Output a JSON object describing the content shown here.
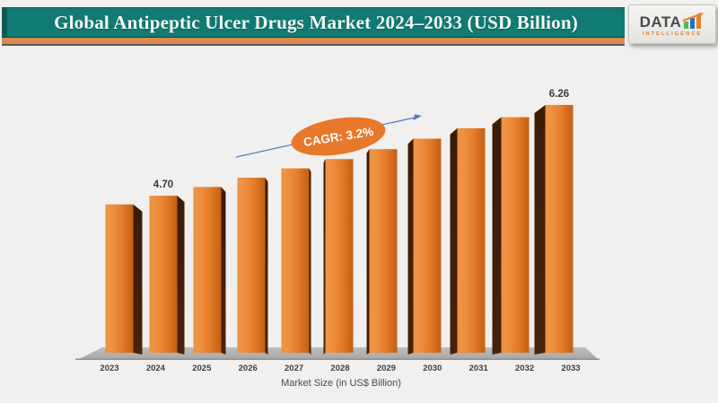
{
  "header": {
    "title": "Global Antipeptic Ulcer Drugs Market 2024–2033 (USD Billion)",
    "colors": {
      "teal": "#0F7B72",
      "teal_dark": "#0A5B55",
      "accent_strip": "#D98A4C"
    }
  },
  "logo": {
    "text": "DATA",
    "subtext": "INTELLIGENCE",
    "bar_colors": [
      "#58B948",
      "#2076C0",
      "#EF7D22"
    ],
    "arrow_color": "#EF7D22",
    "text_color": "#4A4A4A"
  },
  "chart_data": {
    "type": "bar",
    "style": "3d-column",
    "categories": [
      "2023",
      "2024",
      "2025",
      "2026",
      "2027",
      "2028",
      "2029",
      "2030",
      "2031",
      "2032",
      "2033"
    ],
    "values": [
      4.55,
      4.7,
      4.85,
      5.01,
      5.17,
      5.33,
      5.5,
      5.68,
      5.86,
      6.05,
      6.26
    ],
    "data_labels": {
      "2024": "4.70",
      "2033": "6.26"
    },
    "xlabel": "Market Size (in US$ Billion)",
    "annotation": "CAGR: 3.2%",
    "ylim": [
      2.0,
      6.6
    ],
    "grid": false,
    "legend": false,
    "colors": {
      "bar_front": "#E67E2C",
      "bar_front_light": "#EE9244",
      "bar_front_dark": "#C45F12",
      "bar_side": "#48220A",
      "bar_side_dark": "#3A1C05",
      "floor": "#BDBDBD",
      "floor_dark": "#A8A8A8",
      "axis_line": "#8F8F8F",
      "data_label": "#3A3A3A",
      "tick_label": "#3F3F3F",
      "axis_title": "#4A4A4A",
      "annotation_fill": "#E8782A",
      "annotation_text": "#FFFFFF",
      "arrow": "#4F7FC1"
    }
  }
}
